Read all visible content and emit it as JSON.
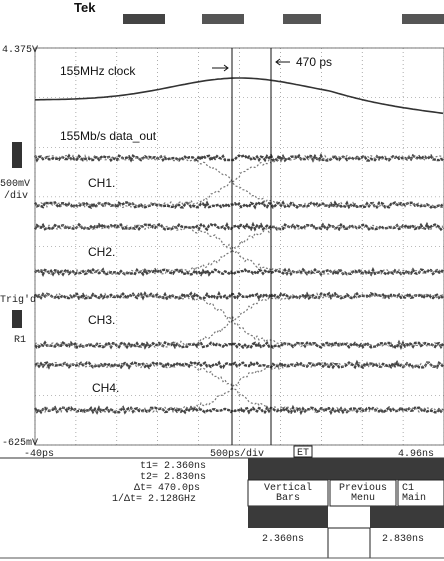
{
  "header": {
    "brand": "Tek"
  },
  "screen": {
    "top_level": "4.375V",
    "bottom_level": "-625mV",
    "scale": "500mV",
    "scale_unit": "/div",
    "trigger": "Trig'd",
    "ref": "R1",
    "x_start": "-40ps",
    "timebase": "500ps/div",
    "mode": "ET",
    "x_end": "4.96ns",
    "labels": {
      "clock": "155MHz clock",
      "delta": "470 ps",
      "data": "155Mb/s data_out"
    },
    "channels": [
      "CH1.",
      "CH2.",
      "CH3.",
      "CH4."
    ]
  },
  "readout": {
    "t1": "t1= 2.360ns",
    "t2": "t2= 2.830ns",
    "dt": "Δt= 470.0ps",
    "inv_dt": "1/Δt= 2.128GHz"
  },
  "menu": {
    "buttons": [
      "Vertical Bars",
      "Previous Menu",
      "C1 Main"
    ],
    "t1_value": "2.360ns",
    "t2_value": "2.830ns"
  }
}
